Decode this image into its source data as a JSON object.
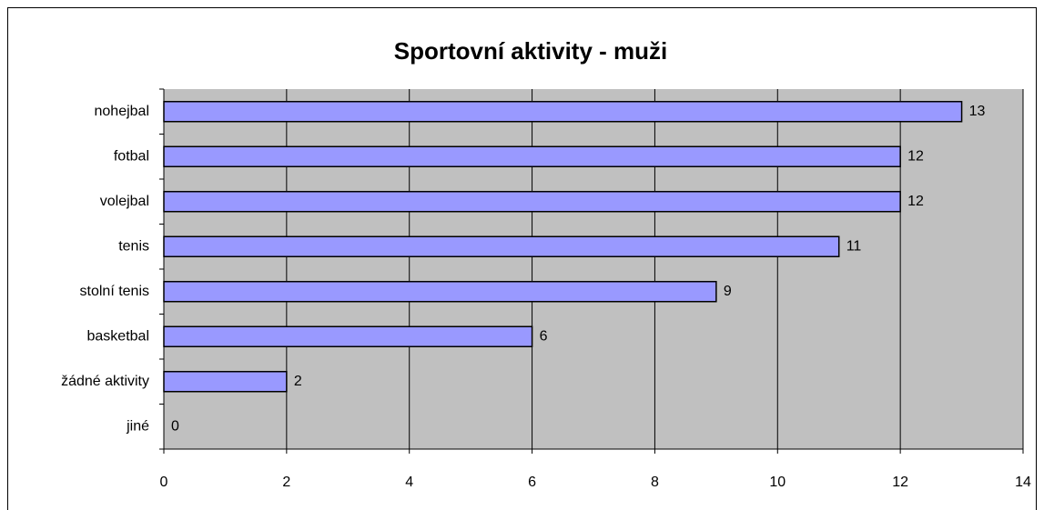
{
  "chart_data": {
    "type": "bar",
    "orientation": "horizontal",
    "title": "Sportovní aktivity - muži",
    "categories": [
      "nohejbal",
      "fotbal",
      "volejbal",
      "tenis",
      "stolní tenis",
      "basketbal",
      "žádné aktivity",
      "jiné"
    ],
    "values": [
      13,
      12,
      12,
      11,
      9,
      6,
      2,
      0
    ],
    "color": "#9999ff",
    "xlim": [
      0,
      14
    ],
    "xticks": [
      0,
      2,
      4,
      6,
      8,
      10,
      12,
      14
    ],
    "grid": true
  }
}
